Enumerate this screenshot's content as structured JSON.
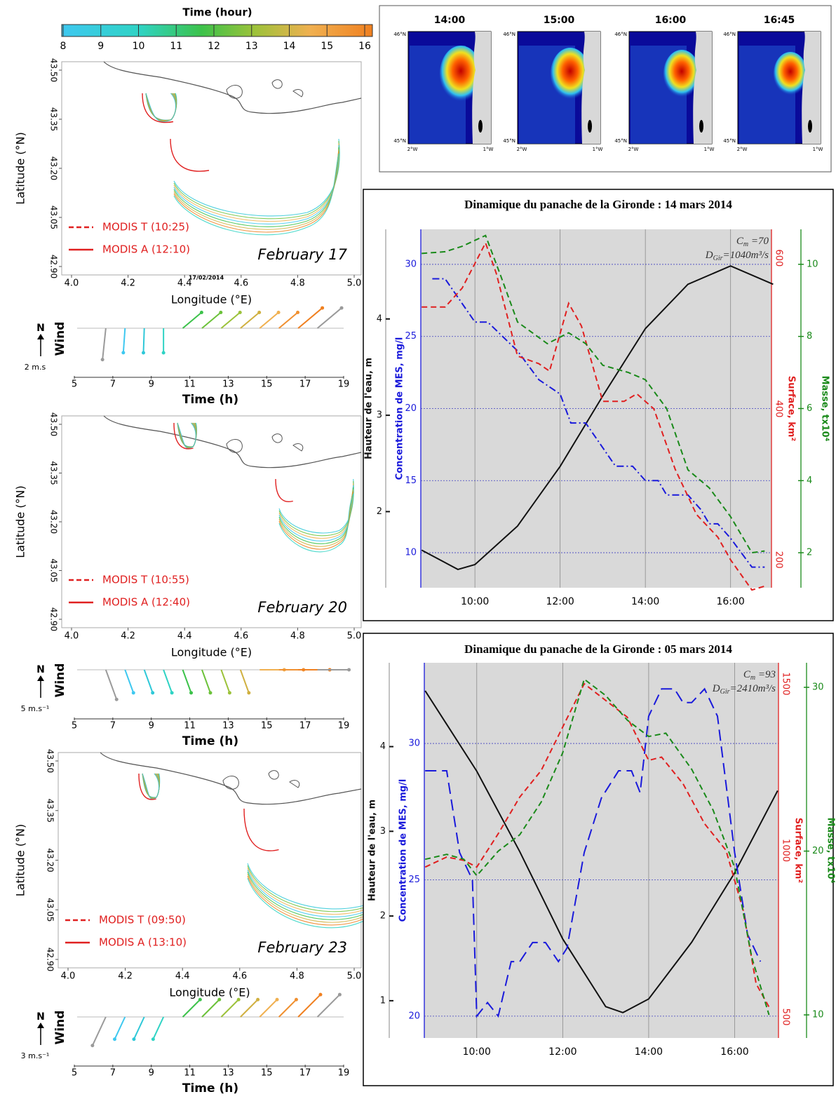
{
  "colorbar": {
    "title": "Time (hour)",
    "ticks": [
      8,
      9,
      10,
      11,
      12,
      13,
      14,
      15,
      16
    ]
  },
  "map_axes": {
    "lat_label": "Latitude (°N)",
    "lat_ticks": [
      "43.50",
      "43.35",
      "43.20",
      "43.05",
      "42.90"
    ],
    "lon_label": "Longitude (°E)",
    "lon_ticks": [
      "4.0",
      "4.2",
      "4.4",
      "4.6",
      "4.8",
      "5.0"
    ]
  },
  "wind_axes": {
    "north": "N",
    "label": "Wind",
    "ticks": [
      5,
      7,
      9,
      11,
      13,
      15,
      17,
      19
    ],
    "xlabel": "Time (h)"
  },
  "maps": [
    {
      "legend": [
        "MODIS T (10:25)",
        "MODIS A (12:10)"
      ],
      "date": "February 17",
      "stamp": "17/02/2014",
      "wind_scale": "2 m.s"
    },
    {
      "legend": [
        "MODIS T (10:55)",
        "MODIS A (12:40)"
      ],
      "date": "February 20",
      "wind_scale": "5 m.s⁻¹"
    },
    {
      "legend": [
        "MODIS T (09:50)",
        "MODIS A (13:10)"
      ],
      "date": "February 23",
      "wind_scale": "3 m.s⁻¹"
    }
  ],
  "snapshots": {
    "titles": [
      "14:00",
      "15:00",
      "16:00",
      "16:45"
    ],
    "lat_labels": [
      "46°N",
      "45°N"
    ],
    "lon_labels": [
      "2°W",
      "1°W"
    ]
  },
  "chart_data": [
    {
      "type": "line",
      "title": "Dinamique du panache de la Gironde : 14 mars 2014",
      "xlim": [
        8.73,
        16.96
      ],
      "xticks": [
        {
          "value": 10,
          "label": "10:00"
        },
        {
          "value": 12,
          "label": "12:00"
        },
        {
          "value": 14,
          "label": "14:00"
        },
        {
          "value": 16,
          "label": "16:00"
        }
      ],
      "grid_axis": 1,
      "axes": [
        {
          "label": "Hauteur de l'eau, m",
          "color": "#111111",
          "ylim": [
            1.21,
            4.93
          ],
          "yticks": [
            2,
            3,
            4
          ]
        },
        {
          "label": "Concentration de MES, mg/l",
          "color": "#1a1adb",
          "ylim": [
            7.57,
            32.43
          ],
          "yticks": [
            10,
            15,
            20,
            25,
            30
          ]
        },
        {
          "label": "Surface, km²",
          "color": "#e02020",
          "ylim": [
            163,
            638
          ],
          "yticks": [
            200,
            400,
            600
          ]
        },
        {
          "label": "Masse, tx10⁴",
          "color": "#1a8a1a",
          "ylim": [
            1.03,
            10.97
          ],
          "yticks": [
            2,
            4,
            6,
            8,
            10
          ]
        }
      ],
      "annotations": [
        {
          "base": "C",
          "sub": "m",
          "text": " =70"
        },
        {
          "base": "D",
          "sub": "Gir",
          "text": "=1040m³/s"
        }
      ],
      "series": [
        {
          "axis": 0,
          "color": "#111111",
          "dash": "solid",
          "x": [
            8.75,
            9.6,
            10,
            11,
            12,
            13,
            14,
            15,
            16,
            17
          ],
          "values": [
            1.6,
            1.4,
            1.45,
            1.85,
            2.47,
            3.2,
            3.9,
            4.36,
            4.55,
            4.36
          ]
        },
        {
          "axis": 1,
          "color": "#1a1adb",
          "dash": "dashdot",
          "x": [
            9,
            9.3,
            10,
            10.3,
            11,
            11.5,
            12,
            12.25,
            12.6,
            13.3,
            13.7,
            14,
            14.3,
            14.5,
            15,
            15.3,
            15.5,
            15.7,
            16,
            16.5,
            16.8
          ],
          "values": [
            29,
            29,
            26,
            26,
            24,
            22,
            21,
            19,
            19,
            16,
            16,
            15,
            15,
            14,
            14,
            13,
            12,
            12,
            11,
            9,
            9
          ]
        },
        {
          "axis": 2,
          "color": "#e02020",
          "dash": "dashed",
          "x": [
            8.75,
            9.3,
            9.7,
            10.25,
            10.5,
            11,
            11.5,
            11.75,
            12.2,
            12.5,
            13,
            13.5,
            13.8,
            14.2,
            14.7,
            15.2,
            15.7,
            16,
            16.5,
            16.8
          ],
          "values": [
            535,
            535,
            560,
            620,
            580,
            470,
            460,
            450,
            540,
            510,
            410,
            410,
            420,
            400,
            320,
            260,
            230,
            200,
            160,
            165
          ]
        },
        {
          "axis": 3,
          "color": "#1a8a1a",
          "dash": "dashed",
          "x": [
            8.75,
            9.3,
            9.7,
            10.25,
            10.6,
            11,
            11.7,
            12.2,
            12.6,
            13,
            13.6,
            14,
            14.5,
            15,
            15.5,
            16,
            16.5,
            16.8
          ],
          "values": [
            10.3,
            10.35,
            10.5,
            10.8,
            9.7,
            8.4,
            7.8,
            8.1,
            7.8,
            7.2,
            7.0,
            6.8,
            6.0,
            4.3,
            3.8,
            3.0,
            2.0,
            2.05
          ]
        }
      ]
    },
    {
      "type": "line",
      "title": "Dinamique du panache de la Gironde : 05 mars 2014",
      "xlim": [
        8.78,
        17.02
      ],
      "xticks": [
        {
          "value": 10,
          "label": "10:00"
        },
        {
          "value": 12,
          "label": "12:00"
        },
        {
          "value": 14,
          "label": "14:00"
        },
        {
          "value": 16,
          "label": "16:00"
        }
      ],
      "grid_axis": 1,
      "axes": [
        {
          "label": "Hauteur de l'eau, m",
          "color": "#111111",
          "ylim": [
            0.56,
            4.99
          ],
          "yticks": [
            1,
            2,
            3,
            4
          ]
        },
        {
          "label": "Concentration de MES, mg/l",
          "color": "#1a1adb",
          "ylim": [
            19.2,
            32.96
          ],
          "yticks": [
            20,
            25,
            30
          ]
        },
        {
          "label": "Surface, km²",
          "color": "#e02020",
          "ylim": [
            437,
            1563
          ],
          "yticks": [
            500,
            1000,
            1500
          ]
        },
        {
          "label": "Masse, tx10⁴",
          "color": "#1a8a1a",
          "ylim": [
            8.59,
            31.5
          ],
          "yticks": [
            10,
            20,
            30
          ]
        }
      ],
      "annotations": [
        {
          "base": "C",
          "sub": "m",
          "text": " =93"
        },
        {
          "base": "D",
          "sub": "Gir",
          "text": "=2410m³/s"
        }
      ],
      "series": [
        {
          "axis": 0,
          "color": "#111111",
          "dash": "solid",
          "x": [
            8.8,
            10,
            11,
            12,
            13,
            13.4,
            14,
            15,
            16,
            17
          ],
          "values": [
            4.66,
            3.71,
            2.76,
            1.73,
            0.93,
            0.86,
            1.02,
            1.69,
            2.51,
            3.48
          ]
        },
        {
          "axis": 1,
          "color": "#1a1adb",
          "dash": "longdash",
          "x": [
            8.8,
            9.3,
            9.6,
            9.9,
            10,
            10.25,
            10.5,
            10.8,
            11,
            11.3,
            11.6,
            11.9,
            12.1,
            12.5,
            12.9,
            13.3,
            13.6,
            13.8,
            14,
            14.3,
            14.6,
            14.8,
            15,
            15.3,
            15.6,
            16,
            16.3,
            16.6
          ],
          "values": [
            29,
            29,
            26,
            25,
            20,
            20.5,
            20,
            22,
            22,
            22.7,
            22.7,
            22,
            22.5,
            26,
            28,
            29,
            29,
            28.2,
            31,
            32,
            32,
            31.5,
            31.5,
            32,
            31,
            26,
            23,
            22
          ]
        },
        {
          "axis": 2,
          "color": "#e02020",
          "dash": "dashed",
          "x": [
            8.8,
            9.3,
            9.7,
            10,
            10.5,
            11,
            11.5,
            12,
            12.5,
            13,
            13.5,
            14,
            14.3,
            14.8,
            15.3,
            15.8,
            16.2,
            16.5,
            16.8
          ],
          "values": [
            950,
            980,
            970,
            950,
            1050,
            1160,
            1240,
            1370,
            1500,
            1450,
            1400,
            1270,
            1280,
            1200,
            1080,
            1000,
            820,
            600,
            530
          ]
        },
        {
          "axis": 3,
          "color": "#1a8a1a",
          "dash": "dashed",
          "x": [
            8.8,
            9.3,
            9.7,
            10,
            10.5,
            11,
            11.5,
            12,
            12.5,
            13,
            13.5,
            14,
            14.4,
            15,
            15.5,
            16,
            16.4,
            16.8
          ],
          "values": [
            19.5,
            19.8,
            19.5,
            18.5,
            20,
            21,
            23,
            26,
            30.5,
            29.5,
            28,
            27,
            27.2,
            25,
            22.5,
            19,
            13.5,
            10
          ]
        }
      ]
    }
  ]
}
